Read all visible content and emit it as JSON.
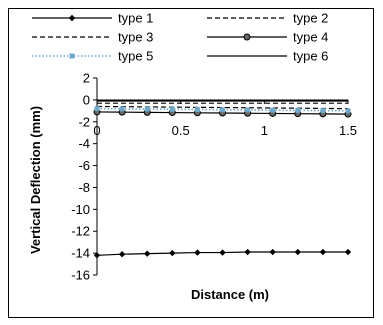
{
  "chart_data": {
    "type": "line",
    "xlabel": "Distance (m)",
    "ylabel": "Vertical Deflection (mm)",
    "xlim": [
      0,
      1.5
    ],
    "ylim": [
      -16,
      2
    ],
    "x_ticks": [
      "0",
      "0.5",
      "1",
      "1.5"
    ],
    "y_ticks": [
      "2",
      "0",
      "-2",
      "-4",
      "-6",
      "-8",
      "-10",
      "-12",
      "-14",
      "-16"
    ],
    "grid": false,
    "legend_position": "top",
    "x": [
      0,
      0.15,
      0.3,
      0.45,
      0.6,
      0.75,
      0.9,
      1.05,
      1.2,
      1.35,
      1.5
    ],
    "series": [
      {
        "name": "type 1",
        "color": "#000000",
        "style": "solid",
        "marker": "diamond",
        "values": [
          -14.2,
          -14.1,
          -14.05,
          -14.0,
          -13.95,
          -13.95,
          -13.9,
          -13.9,
          -13.9,
          -13.9,
          -13.9
        ]
      },
      {
        "name": "type 2",
        "color": "#000000",
        "style": "dashed",
        "marker": "none",
        "values": [
          -0.3,
          -0.3,
          -0.3,
          -0.3,
          -0.3,
          -0.3,
          -0.3,
          -0.3,
          -0.3,
          -0.3,
          -0.3
        ]
      },
      {
        "name": "type 3",
        "color": "#000000",
        "style": "dashed",
        "marker": "none",
        "values": [
          -0.6,
          -0.62,
          -0.64,
          -0.66,
          -0.68,
          -0.7,
          -0.72,
          -0.74,
          -0.76,
          -0.78,
          -0.8
        ]
      },
      {
        "name": "type 4",
        "color": "#000000",
        "style": "solid",
        "marker": "circle",
        "values": [
          -1.1,
          -1.12,
          -1.14,
          -1.16,
          -1.18,
          -1.2,
          -1.22,
          -1.24,
          -1.26,
          -1.28,
          -1.3
        ]
      },
      {
        "name": "type 5",
        "color": "#6fa8c8",
        "style": "dotted",
        "marker": "square",
        "values": [
          -0.8,
          -0.82,
          -0.84,
          -0.86,
          -0.88,
          -0.9,
          -0.92,
          -0.94,
          -0.96,
          -0.98,
          -1.0
        ]
      },
      {
        "name": "type 6",
        "color": "#000000",
        "style": "solid",
        "marker": "none",
        "values": [
          -0.1,
          -0.1,
          -0.1,
          -0.1,
          -0.1,
          -0.1,
          -0.1,
          -0.1,
          -0.1,
          -0.1,
          -0.1
        ]
      }
    ]
  }
}
